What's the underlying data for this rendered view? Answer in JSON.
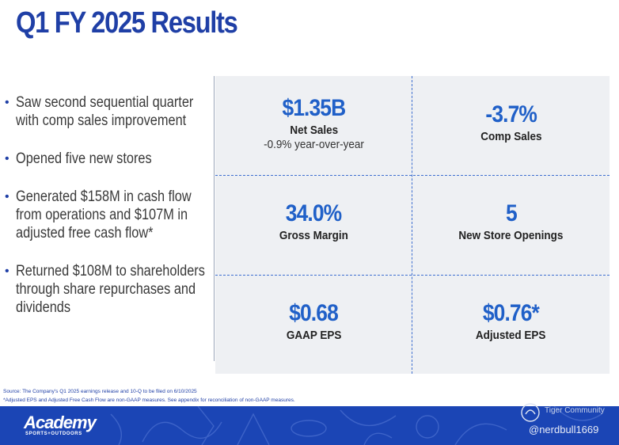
{
  "title": "Q1 FY 2025 Results",
  "bullets": [
    "Saw second sequential quarter with comp sales improvement",
    "Opened five new stores",
    "Generated $158M in cash flow from operations and $107M in adjusted free cash flow*",
    "Returned $108M to shareholders through share repurchases and dividends"
  ],
  "metrics": {
    "net_sales": {
      "value": "$1.35B",
      "label": "Net Sales",
      "sub": "-0.9% year-over-year"
    },
    "comp_sales": {
      "value": "-3.7%",
      "label": "Comp Sales"
    },
    "gross_margin": {
      "value": "34.0%",
      "label": "Gross Margin"
    },
    "new_stores": {
      "value": "5",
      "label": "New Store Openings"
    },
    "gaap_eps": {
      "value": "$0.68",
      "label": "GAAP EPS"
    },
    "adjusted_eps": {
      "value": "$0.76*",
      "label": "Adjusted EPS"
    }
  },
  "footnotes": {
    "source": "Source: The Company's Q1 2025 earnings release and 10-Q to be filed on 6/10/2025",
    "adjusted": "*Adjusted EPS and Adjusted Free Cash Flow are non-GAAP measures. See appendix for reconciliation of non-GAAP measures."
  },
  "brand": {
    "name": "Academy",
    "tagline": "SPORTS+OUTDOORS"
  },
  "watermark": {
    "community": "Tiger Community",
    "handle": "@nerdbull1669"
  },
  "colors": {
    "accent": "#1f3fa6",
    "value_blue": "#2060c8",
    "band": "#1b45b5",
    "panel": "#eef0f3"
  }
}
